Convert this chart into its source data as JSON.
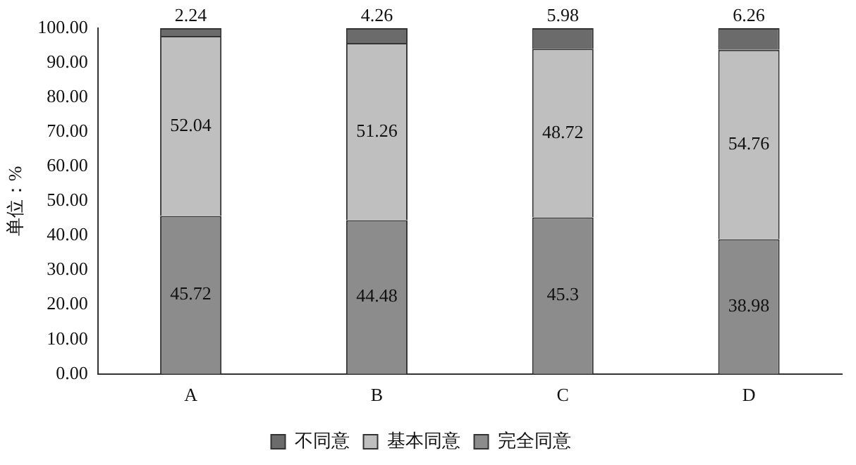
{
  "chart_data": {
    "type": "bar",
    "stacked": true,
    "ylabel": "单位：%",
    "categories": [
      "A",
      "B",
      "C",
      "D"
    ],
    "series": [
      {
        "name": "完全同意",
        "color": "#8c8c8c",
        "values": [
          45.72,
          44.48,
          45.3,
          38.98
        ]
      },
      {
        "name": "基本同意",
        "color": "#bfbfbf",
        "values": [
          52.04,
          51.26,
          48.72,
          54.76
        ]
      },
      {
        "name": "不同意",
        "color": "#6b6b6b",
        "values": [
          2.24,
          4.26,
          5.98,
          6.26
        ]
      }
    ],
    "ylim": [
      0,
      100
    ],
    "yticks": [
      {
        "value": 0,
        "label": "0.00"
      },
      {
        "value": 10,
        "label": "10.00"
      },
      {
        "value": 20,
        "label": "20.00"
      },
      {
        "value": 30,
        "label": "30.00"
      },
      {
        "value": 40,
        "label": "40.00"
      },
      {
        "value": 50,
        "label": "50.00"
      },
      {
        "value": 60,
        "label": "60.00"
      },
      {
        "value": 70,
        "label": "70.00"
      },
      {
        "value": 80,
        "label": "80.00"
      },
      {
        "value": 90,
        "label": "90.00"
      },
      {
        "value": 100,
        "label": "100.00"
      }
    ],
    "grid": false,
    "legend": "bottom",
    "data_labels": true
  }
}
